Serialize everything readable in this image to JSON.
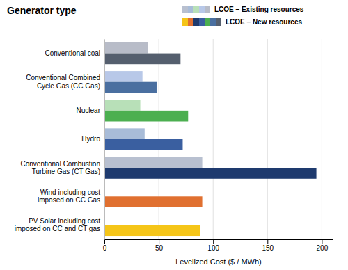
{
  "chart_data": {
    "type": "bar",
    "orientation": "horizontal",
    "title": "Generator type",
    "x_label": "Levelized Cost ($ / MWh)",
    "categories": [
      "PV Solar including cost\nimposed on CC and CT gas",
      "Wind including cost\nimposed on CC Gas",
      "Conventional Combustion\nTurbine Gas (CT Gas)",
      "Hydro",
      "Nuclear",
      "Conventional Combined\nCycle Gas (CC Gas)",
      "Conventional coal"
    ],
    "series": [
      {
        "name": "LCOE – Existing resources",
        "values": [
          null,
          null,
          90,
          37,
          33,
          35,
          40
        ],
        "colors": [
          null,
          null,
          "#b8c0d0",
          "#a8bcd8",
          "#b8e0b8",
          "#b8c8e8",
          "#b8bcc8"
        ]
      },
      {
        "name": "LCOE – New resources",
        "values": [
          88,
          90,
          195,
          72,
          77,
          48,
          70
        ],
        "colors": [
          "#f5c518",
          "#e07030",
          "#1e3a6e",
          "#3a5fa0",
          "#4caf50",
          "#4a6fa0",
          "#555f6e"
        ]
      }
    ],
    "xlim": [
      0,
      210
    ],
    "xticks": [
      0,
      50,
      100,
      150,
      200
    ],
    "grid": true,
    "legend": "upper right"
  }
}
